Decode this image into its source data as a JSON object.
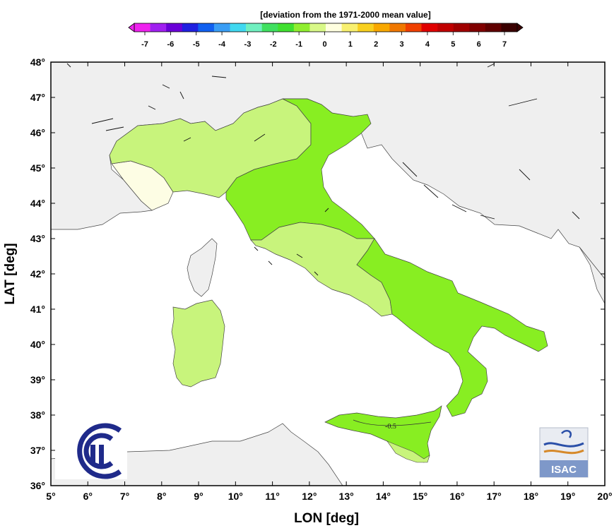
{
  "colorbar": {
    "title": "[deviation from the 1971-2000 mean value]",
    "labels": [
      "-7",
      "-6",
      "-5",
      "-4",
      "-3",
      "-2",
      "-1",
      "0",
      "1",
      "2",
      "3",
      "4",
      "5",
      "6",
      "7"
    ],
    "colors": [
      "#ee22ee",
      "#a020f0",
      "#6a00d8",
      "#2020e0",
      "#1060f0",
      "#3a9ef5",
      "#40d8f0",
      "#70f0c0",
      "#40e060",
      "#40e030",
      "#90ee30",
      "#d8f888",
      "#ffffe0",
      "#f8f070",
      "#f8d020",
      "#f8a800",
      "#f07800",
      "#f04000",
      "#e00000",
      "#c00000",
      "#a00000",
      "#800000",
      "#600000",
      "#3a0000"
    ]
  },
  "axes": {
    "xlabel": "LON [deg]",
    "ylabel": "LAT [deg]",
    "lon_ticks": [
      "5°",
      "6°",
      "7°",
      "8°",
      "9°",
      "10°",
      "11°",
      "12°",
      "13°",
      "14°",
      "15°",
      "16°",
      "17°",
      "18°",
      "19°",
      "20°"
    ],
    "lat_ticks": [
      "48°",
      "47°",
      "46°",
      "45°",
      "44°",
      "43°",
      "42°",
      "41°",
      "40°",
      "39°",
      "38°",
      "37°",
      "36°"
    ],
    "lon_range": [
      5,
      20
    ],
    "lat_range": [
      36,
      48
    ]
  },
  "contour_label": "-0.5",
  "fill_colors": {
    "sea": "#ffffff",
    "land": "#efefef",
    "anomaly_near_zero": "#fdfde4",
    "anomaly_light": "#c8f47c",
    "anomaly_medium": "#88ee22"
  },
  "logos": {
    "left": "cnr-logo-icon",
    "right_text": "ISAC"
  }
}
